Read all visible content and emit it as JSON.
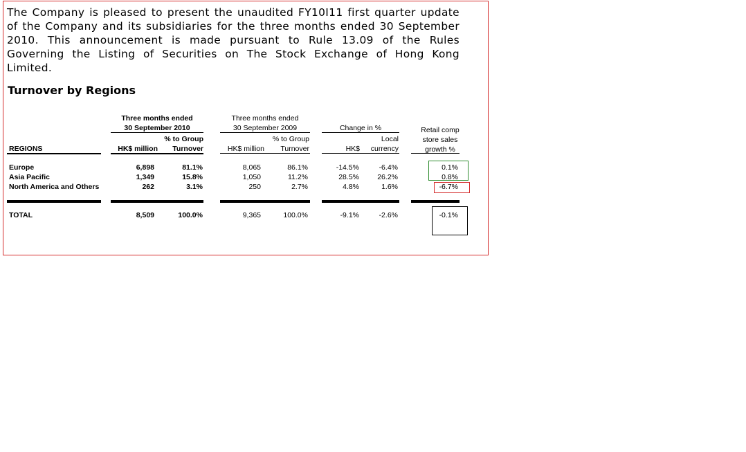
{
  "intro_text": "The Company is pleased to present the unaudited FY10I11 first quarter update of the Company and its subsidiaries for the three months ended 30 September 2010. This announcement is made pursuant to Rule 13.09 of the Rules Governing the Listing of Securities on The Stock Exchange of Hong Kong Limited.",
  "section_title": "Turnover by Regions",
  "table": {
    "headers": {
      "regions": "REGIONS",
      "period_2010_line1": "Three months ended",
      "period_2010_line2": "30 September 2010",
      "period_2009_line1": "Three months ended",
      "period_2009_line2": "30 September 2009",
      "change": "Change in %",
      "hk_million_2010": "HK$ million",
      "pct_group_2010_line1": "% to Group",
      "pct_group_2010_line2": "Turnover",
      "hk_million_2009": "HK$ million",
      "pct_group_2009_line1": "% to Group",
      "pct_group_2009_line2": "Turnover",
      "change_hk": "HK$",
      "change_local_line1": "Local",
      "change_local_line2": "currency",
      "retail_line1": "Retail comp",
      "retail_line2": "store sales",
      "retail_line3": "growth %"
    },
    "rows": [
      {
        "region": "Europe",
        "hk2010": "6,898",
        "pct2010": "81.1%",
        "hk2009": "8,065",
        "pct2009": "86.1%",
        "chg_hk": "-14.5%",
        "chg_local": "-6.4%",
        "retail": "0.1%"
      },
      {
        "region": "Asia Pacific",
        "hk2010": "1,349",
        "pct2010": "15.8%",
        "hk2009": "1,050",
        "pct2009": "11.2%",
        "chg_hk": "28.5%",
        "chg_local": "26.2%",
        "retail": "0.8%"
      },
      {
        "region": "North America and Others",
        "hk2010": "262",
        "pct2010": "3.1%",
        "hk2009": "250",
        "pct2009": "2.7%",
        "chg_hk": "4.8%",
        "chg_local": "1.6%",
        "retail": "-6.7%"
      }
    ],
    "total": {
      "label": "TOTAL",
      "hk2010": "8,509",
      "pct2010": "100.0%",
      "hk2009": "9,365",
      "pct2009": "100.0%",
      "chg_hk": "-9.1%",
      "chg_local": "-2.6%",
      "retail": "-0.1%"
    }
  },
  "colors": {
    "frame_border": "#d42a2a",
    "green_box": "#2e8b2e",
    "red_box": "#d42a2a",
    "black_box": "#000000"
  }
}
